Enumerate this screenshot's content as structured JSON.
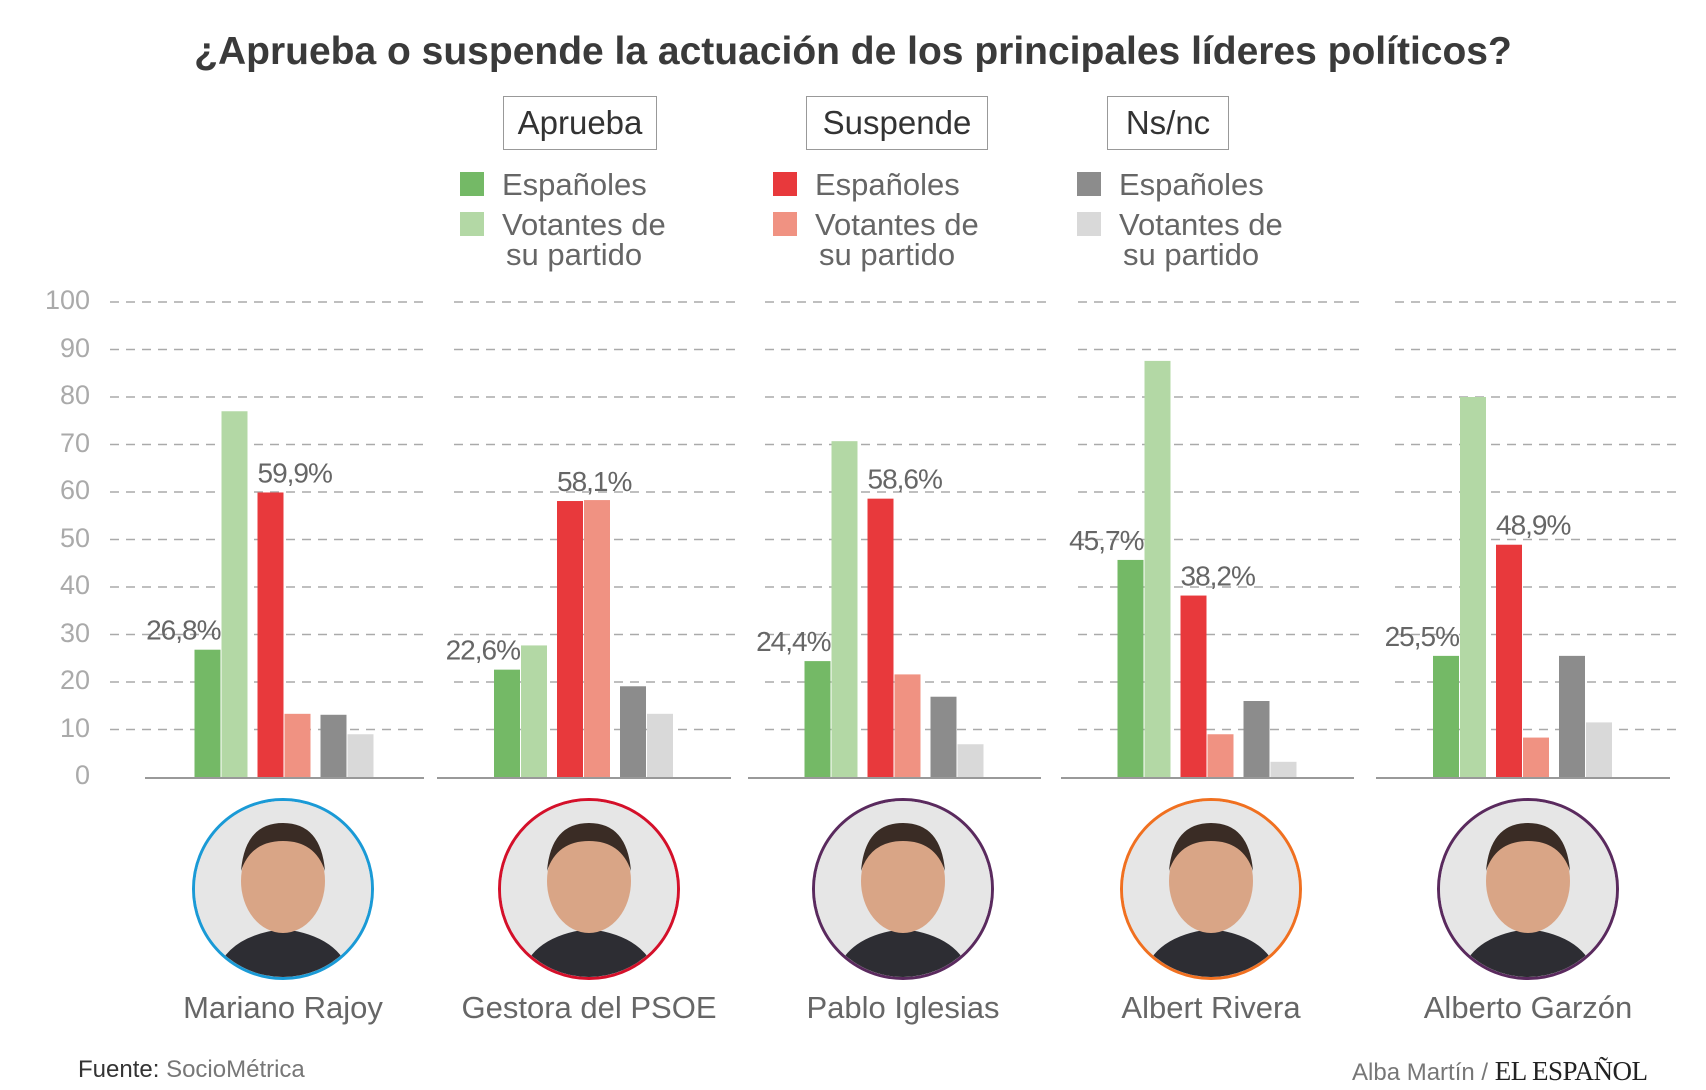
{
  "title": "¿Aprueba o suspende la actuación de los principales líderes políticos?",
  "legend": [
    {
      "heading": "Aprueba",
      "items": [
        {
          "label": "Españoles",
          "color": "#74b966"
        },
        {
          "label": "Votantes de",
          "label2": "su partido",
          "color": "#b3d8a5"
        }
      ]
    },
    {
      "heading": "Suspende",
      "items": [
        {
          "label": "Españoles",
          "color": "#e8393c"
        },
        {
          "label": "Votantes de",
          "label2": "su partido",
          "color": "#f09282"
        }
      ]
    },
    {
      "heading": "Ns/nc",
      "items": [
        {
          "label": "Españoles",
          "color": "#8c8c8c"
        },
        {
          "label": "Votantes de",
          "label2": "su partido",
          "color": "#d9d9d9"
        }
      ]
    }
  ],
  "chart_data": {
    "type": "bar",
    "title": "¿Aprueba o suspende la actuación de los principales líderes políticos?",
    "ylim": [
      0,
      100
    ],
    "yticks": [
      "0",
      "10",
      "20",
      "30",
      "40",
      "50",
      "60",
      "70",
      "80",
      "90",
      "100"
    ],
    "grid": true,
    "categories": [
      "Mariano Rajoy",
      "Gestora del PSOE",
      "Pablo Iglesias",
      "Albert Rivera",
      "Alberto Garzón"
    ],
    "series": [
      {
        "name": "Aprueba - Españoles",
        "color": "#74b966",
        "values": [
          26.8,
          22.6,
          24.4,
          45.7,
          25.5
        ],
        "labels": [
          "26,8%",
          "22,6%",
          "24,4%",
          "45,7%",
          "25,5%"
        ]
      },
      {
        "name": "Aprueba - Votantes de su partido",
        "color": "#b3d8a5",
        "values": [
          77,
          27.7,
          70.7,
          87.6,
          80
        ]
      },
      {
        "name": "Suspende - Españoles",
        "color": "#e8393c",
        "values": [
          59.9,
          58.1,
          58.6,
          38.2,
          48.9
        ],
        "labels": [
          "59,9%",
          "58,1%",
          "58,6%",
          "38,2%",
          "48,9%"
        ]
      },
      {
        "name": "Suspende - Votantes de su partido",
        "color": "#f09282",
        "values": [
          13.3,
          58.3,
          21.6,
          9,
          8.3
        ]
      },
      {
        "name": "Ns/nc - Españoles",
        "color": "#8c8c8c",
        "values": [
          13.1,
          19.1,
          16.9,
          16,
          25.5
        ]
      },
      {
        "name": "Ns/nc - Votantes de su partido",
        "color": "#d9d9d9",
        "values": [
          9,
          13.3,
          6.9,
          3.2,
          11.5
        ]
      }
    ]
  },
  "leaders": [
    {
      "name": "Mariano Rajoy",
      "ring": "#1a9ad6"
    },
    {
      "name": "Gestora del PSOE",
      "ring": "#d4102a"
    },
    {
      "name": "Pablo Iglesias",
      "ring": "#5a2a5e"
    },
    {
      "name": "Albert Rivera",
      "ring": "#f07020"
    },
    {
      "name": "Alberto Garzón",
      "ring": "#5a2a5e"
    }
  ],
  "footer": {
    "source_label": "Fuente:",
    "source": "SocioMétrica",
    "author": "Alba Martín /",
    "brand": "EL ESPAÑOL"
  }
}
